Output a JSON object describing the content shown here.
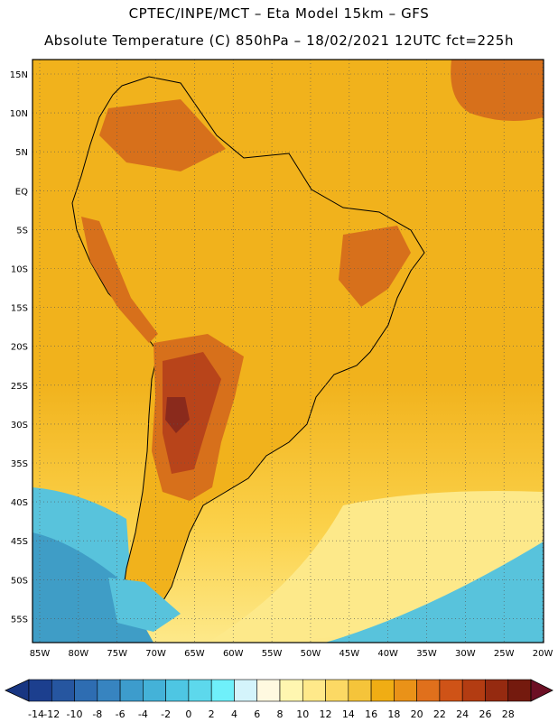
{
  "header": {
    "line1": "CPTEC/INPE/MCT –  Eta Model 15km – GFS",
    "line2": "Absolute Temperature (C) 850hPa – 18/02/2021 12UTC fct=225h"
  },
  "axes": {
    "lat_labels": [
      "15N",
      "10N",
      "5N",
      "EQ",
      "5S",
      "10S",
      "15S",
      "20S",
      "25S",
      "30S",
      "35S",
      "40S",
      "45S",
      "50S",
      "55S"
    ],
    "lon_labels": [
      "85W",
      "80W",
      "75W",
      "70W",
      "65W",
      "60W",
      "55W",
      "50W",
      "45W",
      "40W",
      "35W",
      "30W",
      "25W",
      "20W"
    ]
  },
  "colorbar": {
    "labels": [
      "-14",
      "-12",
      "-10",
      "-8",
      "-6",
      "-4",
      "-2",
      "0",
      "2",
      "4",
      "6",
      "8",
      "10",
      "12",
      "14",
      "16",
      "18",
      "20",
      "22",
      "24",
      "26",
      "28"
    ],
    "colors": [
      "#1c3f8e",
      "#2656a0",
      "#2e6db2",
      "#3784c0",
      "#3d9ccc",
      "#44b2d8",
      "#4ec6e3",
      "#5dd8ec",
      "#6ff0fa",
      "#d4f4fb",
      "#fff9e0",
      "#fff6b0",
      "#ffe98a",
      "#fcd964",
      "#f5c43a",
      "#f0ad14",
      "#ea9218",
      "#e0701c",
      "#cf5317",
      "#b33c12",
      "#952a10",
      "#741a0e"
    ],
    "under_color": "#183682",
    "over_color": "#6c0f24"
  },
  "field_colors": {
    "ocean_warm": "#f1b21c",
    "ocean_mid": "#fbd149",
    "ocean_cool": "#fde98a",
    "land_hot": "#d7701b",
    "land_hotter": "#b8441a",
    "land_core": "#8a2a1c",
    "south_cold": "#58c3dc",
    "south_colder": "#3f9dc6",
    "coast_line": "#000000"
  }
}
